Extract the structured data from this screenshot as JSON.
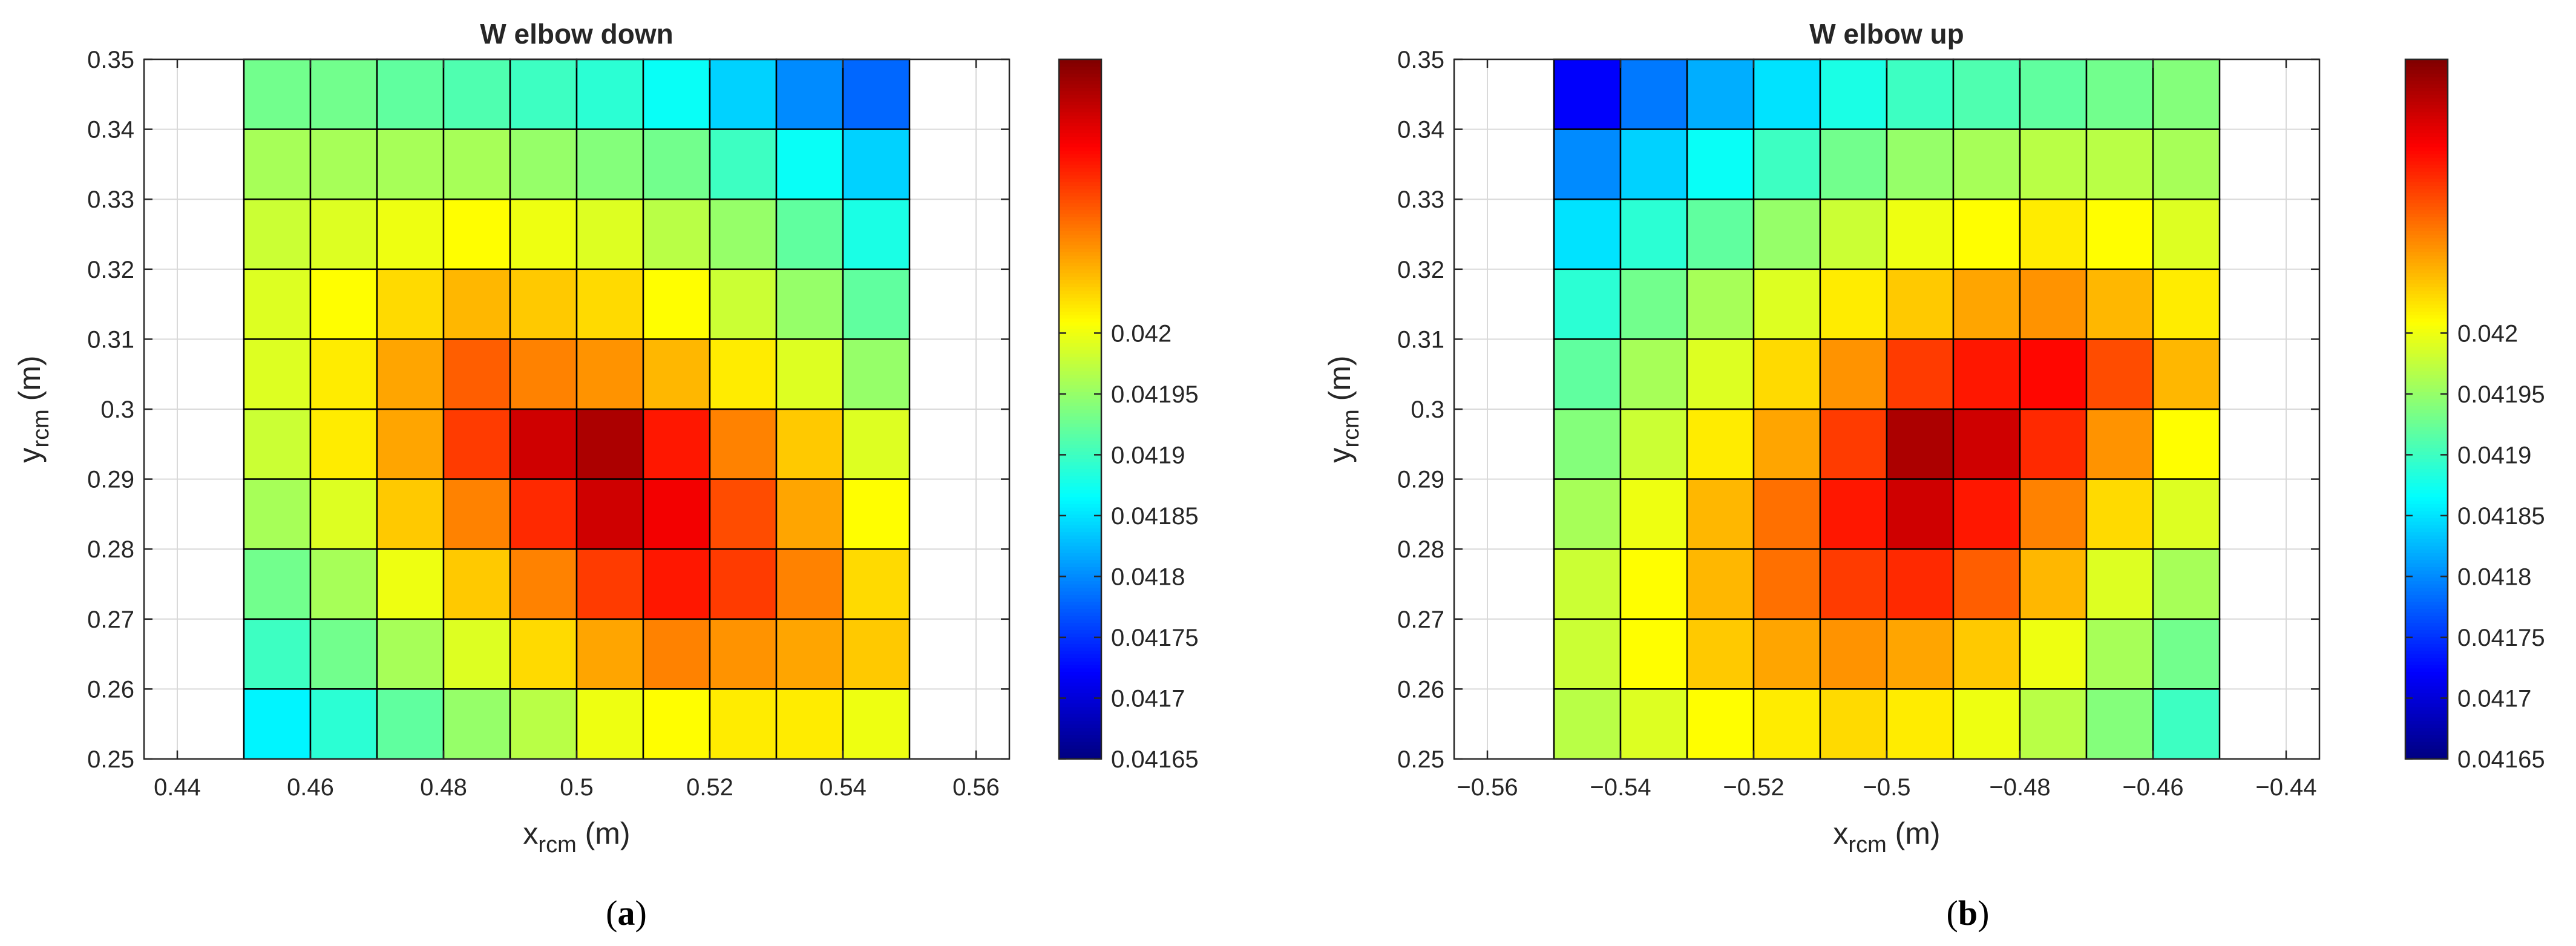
{
  "chart_data": [
    {
      "type": "heatmap",
      "title": "W elbow down",
      "xlabel": {
        "main": "x",
        "sub": "rcm",
        "unit": " (m)"
      },
      "ylabel": {
        "main": "y",
        "sub": "rcm",
        "unit": " (m)"
      },
      "caption": {
        "open": "(",
        "letter": "a",
        "close": ")"
      },
      "xlim": [
        0.435,
        0.565
      ],
      "ylim": [
        0.25,
        0.35
      ],
      "xticks": [
        0.44,
        0.46,
        0.48,
        0.5,
        0.52,
        0.54,
        0.56
      ],
      "xtick_labels": [
        "0.44",
        "0.46",
        "0.48",
        "0.5",
        "0.52",
        "0.54",
        "0.56"
      ],
      "yticks": [
        0.25,
        0.26,
        0.27,
        0.28,
        0.29,
        0.3,
        0.31,
        0.32,
        0.33,
        0.34,
        0.35
      ],
      "ytick_labels": [
        "0.25",
        "0.26",
        "0.27",
        "0.28",
        "0.29",
        "0.3",
        "0.31",
        "0.32",
        "0.33",
        "0.34",
        "0.35"
      ],
      "grid": true,
      "colormap": "jet",
      "clim": [
        0.04165,
        0.042225
      ],
      "colorbar_ticks": [
        0.04165,
        0.0417,
        0.04175,
        0.0418,
        0.04185,
        0.0419,
        0.04195,
        0.042
      ],
      "colorbar_labels": [
        "0.04165",
        "0.0417",
        "0.04175",
        "0.0418",
        "0.04185",
        "0.0419",
        "0.04195",
        "0.042"
      ],
      "cell_x_edges": [
        0.45,
        0.46,
        0.47,
        0.48,
        0.49,
        0.5,
        0.51,
        0.52,
        0.53,
        0.54,
        0.55
      ],
      "cell_y_edges": [
        0.25,
        0.26,
        0.27,
        0.28,
        0.29,
        0.3,
        0.31,
        0.32,
        0.33,
        0.34,
        0.35
      ],
      "values_rows_top_to_bottom": [
        [
          0.04193,
          0.04193,
          0.04192,
          0.04191,
          0.0419,
          0.04189,
          0.04187,
          0.04184,
          0.0418,
          0.04178
        ],
        [
          0.04196,
          0.04196,
          0.04196,
          0.04196,
          0.04195,
          0.04194,
          0.04193,
          0.0419,
          0.04187,
          0.04184
        ],
        [
          0.04198,
          0.04199,
          0.042,
          0.04201,
          0.042,
          0.04199,
          0.04197,
          0.04195,
          0.04192,
          0.04188
        ],
        [
          0.04199,
          0.04201,
          0.04203,
          0.04205,
          0.04204,
          0.04203,
          0.04201,
          0.04198,
          0.04195,
          0.04192
        ],
        [
          0.04199,
          0.04202,
          0.04206,
          0.0421,
          0.04208,
          0.04207,
          0.04205,
          0.04202,
          0.04199,
          0.04195
        ],
        [
          0.04198,
          0.04202,
          0.04206,
          0.04212,
          0.04218,
          0.0422,
          0.04214,
          0.04208,
          0.04204,
          0.04199
        ],
        [
          0.04196,
          0.04199,
          0.04204,
          0.04208,
          0.04213,
          0.04218,
          0.04216,
          0.04211,
          0.04206,
          0.04201
        ],
        [
          0.04193,
          0.04196,
          0.042,
          0.04204,
          0.04208,
          0.04212,
          0.04214,
          0.04212,
          0.04208,
          0.04203
        ],
        [
          0.0419,
          0.04193,
          0.04196,
          0.04199,
          0.04203,
          0.04206,
          0.04208,
          0.04207,
          0.04206,
          0.04204
        ],
        [
          0.04186,
          0.04189,
          0.04192,
          0.04195,
          0.04197,
          0.042,
          0.04201,
          0.04202,
          0.04202,
          0.042
        ]
      ]
    },
    {
      "type": "heatmap",
      "title": "W elbow up",
      "xlabel": {
        "main": "x",
        "sub": "rcm",
        "unit": " (m)"
      },
      "ylabel": {
        "main": "y",
        "sub": "rcm",
        "unit": " (m)"
      },
      "caption": {
        "open": "(",
        "letter": "b",
        "close": ")"
      },
      "xlim": [
        -0.565,
        -0.435
      ],
      "ylim": [
        0.25,
        0.35
      ],
      "xticks": [
        -0.56,
        -0.54,
        -0.52,
        -0.5,
        -0.48,
        -0.46,
        -0.44
      ],
      "xtick_labels": [
        "−0.56",
        "−0.54",
        "−0.52",
        "−0.5",
        "−0.48",
        "−0.46",
        "−0.44"
      ],
      "yticks": [
        0.25,
        0.26,
        0.27,
        0.28,
        0.29,
        0.3,
        0.31,
        0.32,
        0.33,
        0.34,
        0.35
      ],
      "ytick_labels": [
        "0.25",
        "0.26",
        "0.27",
        "0.28",
        "0.29",
        "0.3",
        "0.31",
        "0.32",
        "0.33",
        "0.34",
        "0.35"
      ],
      "grid": true,
      "colormap": "jet",
      "clim": [
        0.04165,
        0.042225
      ],
      "colorbar_ticks": [
        0.04165,
        0.0417,
        0.04175,
        0.0418,
        0.04185,
        0.0419,
        0.04195,
        0.042
      ],
      "colorbar_labels": [
        "0.04165",
        "0.0417",
        "0.04175",
        "0.0418",
        "0.04185",
        "0.0419",
        "0.04195",
        "0.042"
      ],
      "cell_x_edges": [
        -0.55,
        -0.54,
        -0.53,
        -0.52,
        -0.51,
        -0.5,
        -0.49,
        -0.48,
        -0.47,
        -0.46,
        -0.45
      ],
      "cell_y_edges": [
        0.25,
        0.26,
        0.27,
        0.28,
        0.29,
        0.3,
        0.31,
        0.32,
        0.33,
        0.34,
        0.35
      ],
      "values_rows_top_to_bottom": [
        [
          0.04172,
          0.04179,
          0.04182,
          0.04185,
          0.04188,
          0.0419,
          0.04191,
          0.04192,
          0.04193,
          0.04194
        ],
        [
          0.0418,
          0.04184,
          0.04187,
          0.0419,
          0.04193,
          0.04195,
          0.04196,
          0.04197,
          0.04197,
          0.04196
        ],
        [
          0.04185,
          0.04189,
          0.04192,
          0.04195,
          0.04198,
          0.042,
          0.04201,
          0.04202,
          0.04201,
          0.04199
        ],
        [
          0.04189,
          0.04193,
          0.04196,
          0.04199,
          0.04202,
          0.04204,
          0.04206,
          0.04207,
          0.04205,
          0.04202
        ],
        [
          0.04192,
          0.04196,
          0.04199,
          0.04203,
          0.04207,
          0.04212,
          0.04214,
          0.04215,
          0.04211,
          0.04205
        ],
        [
          0.04194,
          0.04198,
          0.04202,
          0.04206,
          0.04212,
          0.0422,
          0.04218,
          0.04213,
          0.04207,
          0.04201
        ],
        [
          0.04196,
          0.042,
          0.04205,
          0.04209,
          0.04214,
          0.04218,
          0.04214,
          0.04208,
          0.04203,
          0.04199
        ],
        [
          0.04198,
          0.04201,
          0.04205,
          0.04209,
          0.04212,
          0.04213,
          0.0421,
          0.04205,
          0.04199,
          0.04196
        ],
        [
          0.04198,
          0.04201,
          0.04204,
          0.04206,
          0.04207,
          0.04206,
          0.04204,
          0.042,
          0.04196,
          0.04193
        ],
        [
          0.04197,
          0.04199,
          0.04201,
          0.04202,
          0.04203,
          0.04202,
          0.042,
          0.04197,
          0.04194,
          0.0419
        ]
      ]
    }
  ]
}
